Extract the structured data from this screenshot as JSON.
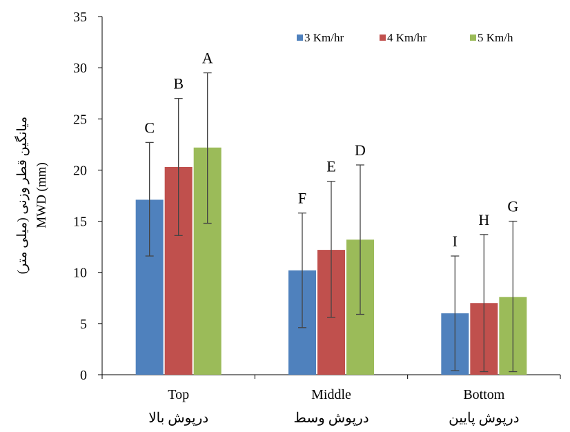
{
  "chart_data": {
    "type": "bar",
    "categories": [
      "Top",
      "Middle",
      "Bottom"
    ],
    "categories_fa": [
      "درپوش بالا",
      "درپوش وسط",
      "درپوش پایین"
    ],
    "series": [
      {
        "name": "3 Km/hr",
        "color": "#4F81BD",
        "values": [
          17.1,
          10.2,
          6.0
        ],
        "err_low": [
          11.6,
          4.6,
          0.4
        ],
        "err_high": [
          22.7,
          15.8,
          11.6
        ],
        "letters": [
          "C",
          "F",
          "I"
        ]
      },
      {
        "name": "4 Km/hr",
        "color": "#C0504D",
        "values": [
          20.3,
          12.2,
          7.0
        ],
        "err_low": [
          13.6,
          5.6,
          0.3
        ],
        "err_high": [
          27.0,
          18.9,
          13.7
        ],
        "letters": [
          "B",
          "E",
          "H"
        ]
      },
      {
        "name": "5 Km/h",
        "color": "#9BBB59",
        "values": [
          22.2,
          13.2,
          7.6
        ],
        "err_low": [
          14.8,
          5.9,
          0.3
        ],
        "err_high": [
          29.5,
          20.5,
          15.0
        ],
        "letters": [
          "A",
          "D",
          "G"
        ]
      }
    ],
    "ylabel": "MWD (mm)",
    "ylabel_fa": "میانگین قطر وزنی (میلی متر)",
    "ylim": [
      0,
      35
    ],
    "yticks": [
      0,
      5,
      10,
      15,
      20,
      25,
      30,
      35
    ],
    "grid": false,
    "legend_position": "top-right"
  }
}
